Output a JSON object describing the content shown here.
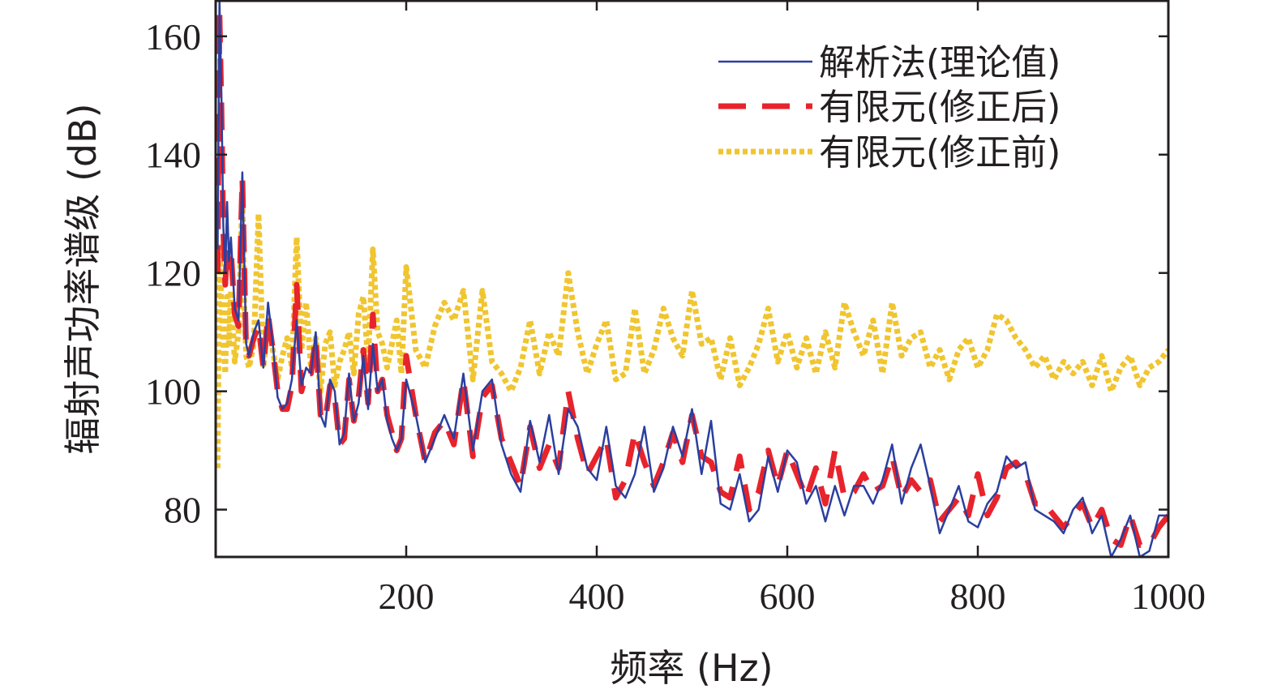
{
  "chart_data": {
    "type": "line",
    "title": "",
    "xlabel": "频率 (Hz)",
    "ylabel": "辐射声功率谱级 (dB)",
    "xlim": [
      0,
      1000
    ],
    "ylim": [
      72,
      166
    ],
    "xticks": [
      200,
      400,
      600,
      800,
      1000
    ],
    "yticks": [
      80,
      100,
      120,
      140,
      160
    ],
    "grid": false,
    "legend_position": "top-right",
    "series": [
      {
        "name": "解析法(理论值)",
        "color": "#2b3f9f",
        "style": "solid",
        "x": [
          2,
          4,
          6,
          8,
          10,
          12,
          14,
          16,
          20,
          24,
          28,
          30,
          32,
          35,
          40,
          45,
          50,
          55,
          60,
          65,
          70,
          75,
          80,
          85,
          90,
          95,
          100,
          105,
          110,
          115,
          120,
          125,
          130,
          135,
          140,
          145,
          150,
          155,
          160,
          165,
          170,
          175,
          180,
          185,
          190,
          195,
          200,
          210,
          220,
          230,
          240,
          250,
          260,
          270,
          280,
          290,
          300,
          310,
          320,
          330,
          340,
          350,
          360,
          370,
          380,
          390,
          400,
          410,
          420,
          430,
          440,
          450,
          460,
          470,
          480,
          490,
          500,
          510,
          520,
          530,
          540,
          550,
          560,
          570,
          580,
          590,
          600,
          610,
          620,
          630,
          640,
          650,
          660,
          670,
          680,
          690,
          700,
          710,
          720,
          730,
          740,
          750,
          760,
          770,
          780,
          790,
          800,
          810,
          820,
          830,
          840,
          850,
          860,
          870,
          880,
          890,
          900,
          910,
          920,
          930,
          940,
          950,
          960,
          970,
          980,
          990,
          1000
        ],
        "y": [
          124,
          166,
          150,
          128,
          120,
          132,
          122,
          126,
          114,
          112,
          137,
          122,
          108,
          106,
          110,
          112,
          104,
          115,
          108,
          99,
          97,
          98,
          102,
          112,
          101,
          104,
          103,
          110,
          96,
          94,
          102,
          100,
          91,
          93,
          103,
          95,
          98,
          106,
          97,
          108,
          100,
          102,
          95,
          92,
          90,
          92,
          102,
          96,
          88,
          92,
          96,
          92,
          103,
          90,
          100,
          102,
          91,
          86,
          83,
          95,
          88,
          96,
          86,
          97,
          94,
          87,
          85,
          94,
          84,
          82,
          86,
          94,
          83,
          87,
          94,
          89,
          97,
          86,
          95,
          81,
          80,
          86,
          78,
          80,
          89,
          83,
          90,
          88,
          81,
          84,
          78,
          84,
          79,
          84,
          84,
          81,
          85,
          91,
          81,
          87,
          91,
          84,
          76,
          80,
          84,
          78,
          77,
          81,
          83,
          89,
          87,
          88,
          80,
          79,
          78,
          76,
          80,
          82,
          76,
          79,
          72,
          75,
          79,
          72,
          73,
          79,
          79
        ]
      },
      {
        "name": "有限元(修正后)",
        "color": "#e8232b",
        "style": "dashed",
        "x": [
          2,
          4,
          6,
          8,
          10,
          12,
          14,
          16,
          20,
          24,
          28,
          30,
          32,
          35,
          40,
          45,
          50,
          55,
          60,
          65,
          70,
          75,
          80,
          85,
          90,
          95,
          100,
          105,
          110,
          115,
          120,
          125,
          130,
          135,
          140,
          145,
          150,
          155,
          160,
          165,
          170,
          175,
          180,
          185,
          190,
          195,
          200,
          210,
          220,
          230,
          240,
          250,
          260,
          270,
          280,
          290,
          300,
          310,
          320,
          330,
          340,
          350,
          360,
          370,
          380,
          390,
          400,
          410,
          420,
          430,
          440,
          450,
          460,
          470,
          480,
          490,
          500,
          510,
          520,
          530,
          540,
          550,
          560,
          570,
          580,
          590,
          600,
          610,
          620,
          630,
          640,
          650,
          660,
          670,
          680,
          690,
          700,
          710,
          720,
          730,
          740,
          750,
          760,
          770,
          780,
          790,
          800,
          810,
          820,
          830,
          840,
          850,
          860,
          870,
          880,
          890,
          900,
          910,
          920,
          930,
          940,
          950,
          960,
          970,
          980,
          990,
          1000
        ],
        "y": [
          120,
          164,
          148,
          127,
          118,
          124,
          121,
          124,
          113,
          111,
          136,
          121,
          107,
          106,
          109,
          111,
          104,
          113,
          107,
          100,
          97,
          97,
          101,
          118,
          100,
          103,
          103,
          109,
          96,
          95,
          101,
          99,
          91,
          92,
          102,
          95,
          99,
          107,
          98,
          113,
          100,
          102,
          96,
          93,
          90,
          92,
          106,
          96,
          88,
          93,
          95,
          91,
          102,
          89,
          99,
          101,
          92,
          88,
          84,
          94,
          87,
          91,
          87,
          100,
          92,
          86,
          89,
          92,
          82,
          85,
          93,
          88,
          84,
          88,
          93,
          88,
          96,
          89,
          88,
          83,
          82,
          89,
          80,
          83,
          90,
          84,
          90,
          86,
          82,
          87,
          81,
          90,
          82,
          83,
          86,
          83,
          84,
          89,
          82,
          85,
          83,
          85,
          78,
          80,
          82,
          79,
          86,
          79,
          82,
          87,
          88,
          86,
          81,
          81,
          79,
          77,
          79,
          81,
          77,
          80,
          75,
          74,
          79,
          74,
          74,
          77,
          79
        ]
      },
      {
        "name": "有限元(修正前)",
        "color": "#f0c530",
        "style": "dotted",
        "x": [
          2,
          4,
          6,
          8,
          10,
          12,
          14,
          16,
          20,
          24,
          28,
          30,
          32,
          35,
          40,
          45,
          50,
          55,
          60,
          65,
          70,
          75,
          80,
          85,
          90,
          95,
          100,
          105,
          110,
          115,
          120,
          125,
          130,
          135,
          140,
          145,
          150,
          155,
          160,
          165,
          170,
          175,
          180,
          185,
          190,
          195,
          200,
          210,
          220,
          230,
          240,
          250,
          260,
          270,
          280,
          290,
          300,
          310,
          320,
          330,
          340,
          350,
          360,
          370,
          380,
          390,
          400,
          410,
          420,
          430,
          440,
          450,
          460,
          470,
          480,
          490,
          500,
          510,
          520,
          530,
          540,
          550,
          560,
          570,
          580,
          590,
          600,
          610,
          620,
          630,
          640,
          650,
          660,
          670,
          680,
          690,
          700,
          710,
          720,
          730,
          740,
          750,
          760,
          770,
          780,
          790,
          800,
          810,
          820,
          830,
          840,
          850,
          860,
          870,
          880,
          890,
          900,
          910,
          920,
          930,
          940,
          950,
          960,
          970,
          980,
          990,
          1000
        ],
        "y": [
          87,
          125,
          115,
          108,
          103,
          116,
          108,
          117,
          105,
          110,
          134,
          115,
          106,
          104,
          108,
          130,
          104,
          112,
          107,
          102,
          106,
          109,
          104,
          126,
          107,
          115,
          104,
          109,
          100,
          108,
          110,
          101,
          105,
          107,
          110,
          103,
          113,
          116,
          105,
          124,
          110,
          108,
          104,
          108,
          112,
          103,
          121,
          107,
          104,
          111,
          115,
          112,
          117,
          102,
          117,
          105,
          103,
          100,
          104,
          112,
          103,
          110,
          106,
          120,
          110,
          103,
          108,
          112,
          102,
          103,
          114,
          103,
          107,
          114,
          109,
          106,
          117,
          108,
          109,
          102,
          109,
          101,
          104,
          108,
          114,
          105,
          110,
          104,
          109,
          103,
          110,
          104,
          115,
          110,
          106,
          112,
          103,
          115,
          106,
          109,
          110,
          104,
          107,
          102,
          107,
          109,
          104,
          107,
          113,
          112,
          109,
          107,
          104,
          106,
          102,
          105,
          103,
          105,
          101,
          106,
          100,
          104,
          106,
          101,
          104,
          105,
          107
        ]
      }
    ]
  }
}
